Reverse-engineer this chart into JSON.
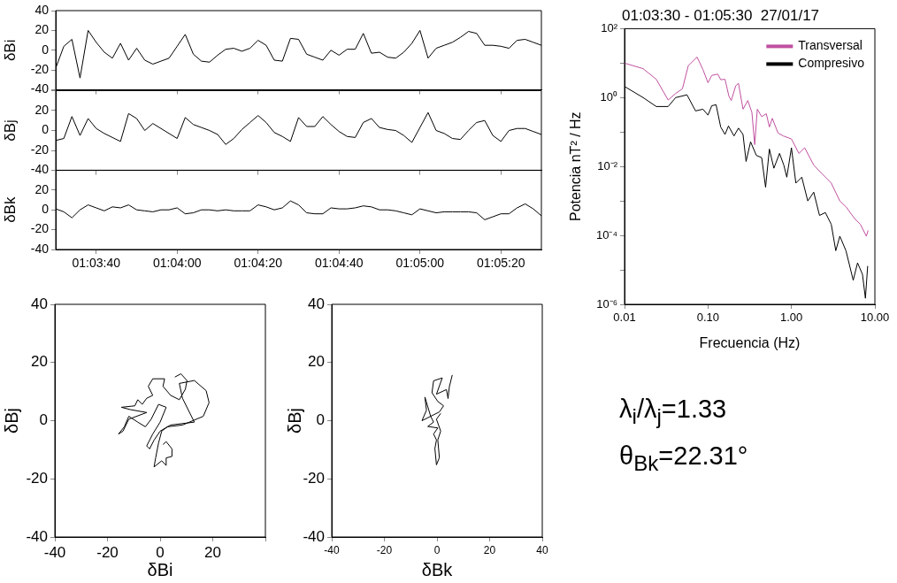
{
  "chart_data": [
    {
      "type": "line",
      "ylabel": "δBi",
      "xlim": [
        1.058333,
        1.091667
      ],
      "ylim": [
        -40,
        40
      ],
      "yticks": [
        -40,
        -20,
        0,
        20,
        40
      ],
      "tick_labels": "y",
      "xticks": [
        {
          "value": 1.061111,
          "label": null
        },
        {
          "value": 1.066667,
          "label": null
        },
        {
          "value": 1.072222,
          "label": null
        },
        {
          "value": 1.077778,
          "label": null
        },
        {
          "value": 1.083333,
          "label": null
        },
        {
          "value": 1.088889,
          "label": null
        }
      ],
      "x": [
        1.058333,
        1.058889,
        1.059444,
        1.06,
        1.060556,
        1.061111,
        1.061667,
        1.062222,
        1.062778,
        1.063333,
        1.063889,
        1.064444,
        1.065,
        1.065556,
        1.066111,
        1.066667,
        1.067222,
        1.067778,
        1.068333,
        1.068889,
        1.069444,
        1.07,
        1.070556,
        1.071111,
        1.071667,
        1.072222,
        1.072778,
        1.073333,
        1.073889,
        1.074444,
        1.075,
        1.075556,
        1.076111,
        1.076667,
        1.077222,
        1.077778,
        1.078333,
        1.078889,
        1.079444,
        1.08,
        1.080556,
        1.081111,
        1.081667,
        1.082222,
        1.082778,
        1.083333,
        1.083889,
        1.084444,
        1.085,
        1.085556,
        1.086111,
        1.086667,
        1.087222,
        1.087778,
        1.088333,
        1.088889,
        1.089444,
        1.09,
        1.090556,
        1.091111,
        1.091667
      ],
      "series": [
        {
          "color": "#000000",
          "values": [
            -18,
            4,
            11,
            -28,
            20,
            8,
            -2,
            -8,
            7,
            -10,
            2,
            -10,
            -14,
            -11,
            -8,
            4,
            16,
            -4,
            -11,
            -12,
            -5,
            1,
            2,
            -1,
            2,
            10,
            5,
            -10,
            -11,
            12,
            11,
            -4,
            -7,
            -10,
            0,
            -5,
            1,
            1,
            17,
            -3,
            -2,
            -7,
            -8,
            -2,
            7,
            20,
            -8,
            2,
            5,
            8,
            13,
            19,
            17,
            5,
            5,
            4,
            2,
            10,
            11,
            8,
            5
          ]
        }
      ]
    },
    {
      "type": "line",
      "ylabel": "δBj",
      "xlim": [
        1.058333,
        1.091667
      ],
      "ylim": [
        -40,
        40
      ],
      "yticks": [
        -40,
        -20,
        0,
        20,
        {
          "value": 40,
          "label": null
        }
      ],
      "tick_labels": "y",
      "xticks": [
        {
          "value": 1.061111,
          "label": null
        },
        {
          "value": 1.066667,
          "label": null
        },
        {
          "value": 1.072222,
          "label": null
        },
        {
          "value": 1.077778,
          "label": null
        },
        {
          "value": 1.083333,
          "label": null
        },
        {
          "value": 1.088889,
          "label": null
        }
      ],
      "x": [
        1.058333,
        1.058889,
        1.059444,
        1.06,
        1.060556,
        1.061111,
        1.061667,
        1.062222,
        1.062778,
        1.063333,
        1.063889,
        1.064444,
        1.065,
        1.065556,
        1.066111,
        1.066667,
        1.067222,
        1.067778,
        1.068333,
        1.068889,
        1.069444,
        1.07,
        1.070556,
        1.071111,
        1.071667,
        1.072222,
        1.072778,
        1.073333,
        1.073889,
        1.074444,
        1.075,
        1.075556,
        1.076111,
        1.076667,
        1.077222,
        1.077778,
        1.078333,
        1.078889,
        1.079444,
        1.08,
        1.080556,
        1.081111,
        1.081667,
        1.082222,
        1.082778,
        1.083333,
        1.083889,
        1.084444,
        1.085,
        1.085556,
        1.086111,
        1.086667,
        1.087222,
        1.087778,
        1.088333,
        1.088889,
        1.089444,
        1.09,
        1.090556,
        1.091111,
        1.091667
      ],
      "series": [
        {
          "color": "#000000",
          "values": [
            -10,
            -8,
            14,
            -5,
            12,
            2,
            -3,
            -7,
            -11,
            17,
            12,
            0,
            7,
            2,
            -3,
            -8,
            13,
            6,
            3,
            0,
            -4,
            -14,
            -8,
            1,
            8,
            15,
            8,
            -2,
            -6,
            -11,
            13,
            4,
            4,
            14,
            6,
            -1,
            -6,
            -7,
            8,
            12,
            3,
            1,
            0,
            -5,
            -12,
            3,
            18,
            0,
            -3,
            -8,
            -9,
            0,
            8,
            10,
            -5,
            -11,
            0,
            2,
            2,
            -1,
            -4
          ]
        }
      ]
    },
    {
      "type": "line",
      "ylabel": "δBk",
      "xlim": [
        1.058333,
        1.091667
      ],
      "ylim": [
        -40,
        40
      ],
      "yticks": [
        -40,
        -20,
        0,
        20,
        {
          "value": 40,
          "label": null
        }
      ],
      "xticks": [
        {
          "value": 1.061111,
          "label": "01:03:40"
        },
        {
          "value": 1.066667,
          "label": "01:04:00"
        },
        {
          "value": 1.072222,
          "label": "01:04:20"
        },
        {
          "value": 1.077778,
          "label": "01:04:40"
        },
        {
          "value": 1.083333,
          "label": "01:05:00"
        },
        {
          "value": 1.088889,
          "label": "01:05:20"
        }
      ],
      "x": [
        1.058333,
        1.058889,
        1.059444,
        1.06,
        1.060556,
        1.061111,
        1.061667,
        1.062222,
        1.062778,
        1.063333,
        1.063889,
        1.064444,
        1.065,
        1.065556,
        1.066111,
        1.066667,
        1.067222,
        1.067778,
        1.068333,
        1.068889,
        1.069444,
        1.07,
        1.070556,
        1.071111,
        1.071667,
        1.072222,
        1.072778,
        1.073333,
        1.073889,
        1.074444,
        1.075,
        1.075556,
        1.076111,
        1.076667,
        1.077222,
        1.077778,
        1.078333,
        1.078889,
        1.079444,
        1.08,
        1.080556,
        1.081111,
        1.081667,
        1.082222,
        1.082778,
        1.083333,
        1.083889,
        1.084444,
        1.085,
        1.085556,
        1.086111,
        1.086667,
        1.087222,
        1.087778,
        1.088333,
        1.088889,
        1.089444,
        1.09,
        1.090556,
        1.091111,
        1.091667
      ],
      "series": [
        {
          "color": "#000000",
          "values": [
            1,
            -2,
            -8,
            0,
            5,
            2,
            -1,
            3,
            2,
            5,
            0,
            -1,
            -2,
            0,
            0,
            2,
            -4,
            -3,
            0,
            0,
            -1,
            0,
            -1,
            -1,
            -1,
            5,
            3,
            0,
            2,
            9,
            5,
            -3,
            -4,
            -4,
            2,
            1,
            1,
            2,
            4,
            3,
            0,
            0,
            -1,
            -3,
            -5,
            1,
            -1,
            -3,
            -2,
            -2,
            -2,
            -2,
            -3,
            -10,
            -7,
            -4,
            -4,
            2,
            6,
            1,
            -6
          ]
        }
      ]
    },
    {
      "type": "line",
      "title": "01:03:30 - 01:05:30  27/01/17",
      "xlabel": "Frecuencia (Hz)",
      "ylabel": "Potencia nT² / Hz",
      "log": "xy",
      "legend": "top right",
      "xlim": [
        0.01,
        10
      ],
      "ylim": [
        1e-06,
        100
      ],
      "xticks": [
        0.01,
        {
          "value": 0.1,
          "label": "0.10"
        },
        {
          "value": 1,
          "label": "1.00"
        },
        {
          "value": 10,
          "label": "10.00"
        }
      ],
      "yticks": [
        {
          "value": 1e-06,
          "label": "10⁻⁶"
        },
        {
          "value": 1e-05,
          "label": null
        },
        {
          "value": 0.0001,
          "label": "10⁻⁴"
        },
        {
          "value": 0.001,
          "label": null
        },
        {
          "value": 0.01,
          "label": "10⁻²"
        },
        {
          "value": 0.1,
          "label": null
        },
        {
          "value": 1,
          "label": "10⁰"
        },
        {
          "value": 10,
          "label": null
        },
        {
          "value": 100,
          "label": "10²"
        }
      ],
      "series": [
        {
          "name": "Transversal",
          "color": "#c0509f",
          "x": [
            0.01,
            0.0167,
            0.024,
            0.0333,
            0.0407,
            0.0494,
            0.058,
            0.074,
            0.087,
            0.1,
            0.111,
            0.131,
            0.142,
            0.16,
            0.178,
            0.19,
            0.215,
            0.232,
            0.263,
            0.3,
            0.336,
            0.363,
            0.39,
            0.44,
            0.5,
            0.544,
            0.59,
            0.69,
            0.8,
            1.0,
            1.23,
            1.44,
            1.85,
            2.35,
            3.0,
            3.8,
            4.5,
            5.7,
            6.7,
            7.9,
            8.3
          ],
          "values": [
            10,
            6.9,
            3.4,
            0.85,
            1.3,
            1.8,
            8.4,
            15,
            6.5,
            2.7,
            4.4,
            4.8,
            3.3,
            3.4,
            1.1,
            0.82,
            2.2,
            2.6,
            0.46,
            0.82,
            0.37,
            0.043,
            0.46,
            0.28,
            0.34,
            0.14,
            0.25,
            0.094,
            0.077,
            0.063,
            0.024,
            0.035,
            0.011,
            0.006,
            0.0033,
            0.001,
            0.00068,
            0.00031,
            0.00021,
            9.5e-05,
            0.00014
          ]
        },
        {
          "name": "Compresivo",
          "color": "#000000",
          "x": [
            0.01,
            0.0167,
            0.024,
            0.0333,
            0.041,
            0.056,
            0.071,
            0.087,
            0.1,
            0.111,
            0.125,
            0.142,
            0.16,
            0.176,
            0.205,
            0.232,
            0.263,
            0.286,
            0.324,
            0.38,
            0.44,
            0.49,
            0.544,
            0.616,
            0.72,
            0.81,
            0.88,
            1.0,
            1.13,
            1.33,
            1.57,
            1.85,
            2.17,
            2.55,
            3.0,
            3.4,
            3.8,
            4.5,
            5.5,
            6.2,
            7.1,
            7.7,
            8.2
          ],
          "values": [
            2.1,
            1.0,
            0.55,
            0.55,
            1.0,
            1.2,
            0.41,
            0.46,
            0.31,
            0.58,
            0.62,
            0.14,
            0.085,
            0.15,
            0.077,
            0.13,
            0.085,
            0.014,
            0.052,
            0.021,
            0.018,
            0.0025,
            0.032,
            0.0089,
            0.024,
            0.011,
            0.0049,
            0.035,
            0.0033,
            0.0049,
            0.001,
            0.0018,
            0.00038,
            0.00046,
            0.00021,
            3.6e-05,
            9.5e-05,
            3.6e-05,
            5e-06,
            1.6e-05,
            7.4e-06,
            1.5e-06,
            1.3e-05
          ]
        }
      ]
    },
    {
      "type": "line",
      "xlabel": "δBi",
      "ylabel": "δBj",
      "xlim": [
        -40,
        40
      ],
      "ylim": [
        -40,
        40
      ],
      "xticks": [
        -40,
        -20,
        0,
        20,
        {
          "value": 40,
          "label": null
        }
      ],
      "yticks": [
        -40,
        -20,
        0,
        20,
        40
      ],
      "series": [
        {
          "color": "#000000",
          "x": [
            5.6,
            7.9,
            10.2,
            9.6,
            7.3,
            4,
            1.1,
            1.7,
            -2.8,
            -4.5,
            -2.8,
            -5.1,
            -6.8,
            -8.5,
            -9.6,
            -14.7,
            -11.3,
            -5.1,
            -11.9,
            -14.1,
            -15.8,
            -13.6,
            -11.9,
            -8.5,
            -5.6,
            -3.4,
            -0.6,
            2.3,
            0,
            -2.8,
            -5.1,
            -4,
            -2.3,
            0,
            4,
            13,
            8.5,
            7.3,
            13,
            17.5,
            18.6,
            16.4,
            8.5,
            2.8,
            0.6,
            -0.6,
            -1.7,
            -2.3,
            0.6,
            2.3,
            2.3,
            4.5,
            4.5,
            2.3,
            1.1
          ],
          "values": [
            15,
            16.1,
            13.8,
            10.8,
            7.2,
            8.7,
            11.8,
            14.4,
            14.4,
            11.8,
            8.7,
            7.7,
            5.6,
            7.2,
            5.1,
            4.6,
            3.8,
            2.8,
            0.5,
            -3.6,
            -4.6,
            -2.1,
            1.5,
            -0.5,
            -2.1,
            0.5,
            5.6,
            4.6,
            -0.5,
            -4.6,
            -8.7,
            -9.7,
            -6.7,
            -3.6,
            -1.5,
            -0.5,
            7.7,
            12.8,
            13.8,
            10.3,
            6.2,
            1.5,
            -1.5,
            -2.1,
            -3.6,
            -7.7,
            -12.8,
            -15.9,
            -13.8,
            -15.4,
            -12.8,
            -12.3,
            -9.7,
            -7.2,
            -8.2
          ]
        }
      ]
    },
    {
      "type": "line",
      "xlabel": "δBk",
      "ylabel": "δBj",
      "xlim": [
        -40,
        40
      ],
      "ylim": [
        -40,
        40
      ],
      "xticks": [
        -40,
        -20,
        0,
        20,
        40
      ],
      "yticks": [
        -40,
        -20,
        0,
        20,
        40
      ],
      "series": [
        {
          "color": "#000000",
          "x": [
            5.8,
            4.7,
            4.2,
            3.6,
            -0.2,
            2,
            -1.3,
            -1.9,
            0.3,
            2.5,
            0.9,
            -5.7,
            -4,
            -4.6,
            -2.4,
            -1.3,
            -3.5,
            0.3,
            -1.3,
            -0.2,
            -0.8,
            -0.2,
            0.9,
            0.3,
            1.4,
            -0.2,
            1.4
          ],
          "values": [
            15.7,
            11.7,
            7.6,
            10.7,
            9.1,
            14.7,
            13.7,
            9.6,
            6.6,
            5.1,
            3,
            0,
            3.6,
            8.1,
            1.5,
            -0.5,
            -2,
            -2.5,
            -4.6,
            -6.6,
            -9.6,
            -15.2,
            -12.7,
            -6.6,
            -3.6,
            0.5,
            2.5
          ]
        }
      ]
    },
    {
      "type": "other",
      "annotations": [
        "λ$_{i}$/λ$_{j}$=1.33",
        "θ$_{Bk}$=22.31°"
      ]
    }
  ]
}
